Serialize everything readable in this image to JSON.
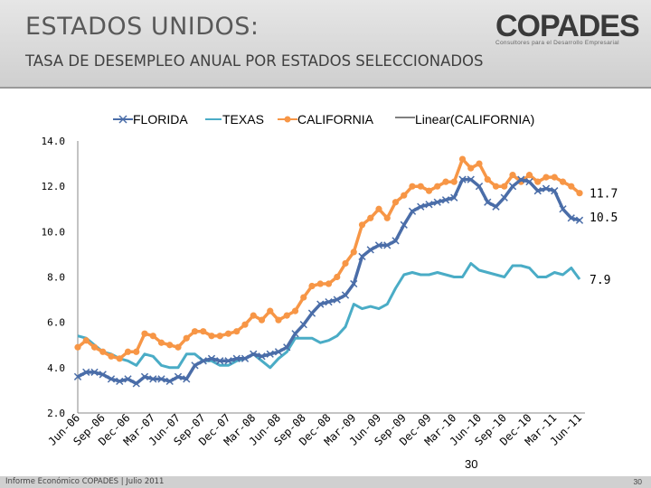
{
  "header": {
    "title": "ESTADOS UNIDOS:",
    "subtitle": "TASA  DE DESEMPLEO ANUAL POR ESTADOS SELECCIONADOS",
    "logo_text": "COPADES",
    "logo_tagline": "Consultores para el Desarrollo Empresarial"
  },
  "page_label": "30",
  "footer": {
    "text": "Informe Económico COPADES  |  Julio 2011",
    "page_number": "30"
  },
  "colors": {
    "florida": "#4a6da8",
    "texas": "#4aacc6",
    "california": "#f79646",
    "trend": "#000000"
  },
  "chart_data": {
    "type": "line",
    "title": "",
    "xlabel": "",
    "ylabel": "",
    "ylim": [
      2.0,
      14.0
    ],
    "yticks": [
      2.0,
      4.0,
      6.0,
      8.0,
      10.0,
      12.0,
      14.0
    ],
    "ytick_labels": [
      "2.0",
      "4.0",
      "6.0",
      "8.0",
      "10.0",
      "12.0",
      "14.0"
    ],
    "x_tick_labels": [
      "Jun-06",
      "Sep-06",
      "Dec-06",
      "Mar-07",
      "Jun-07",
      "Sep-07",
      "Dec-07",
      "Mar-08",
      "Jun-08",
      "Sep-08",
      "Dec-08",
      "Mar-09",
      "Jun-09",
      "Sep-09",
      "Dec-09",
      "Mar-10",
      "Jun-10",
      "Sep-10",
      "Dec-10",
      "Mar-11",
      "Jun-11"
    ],
    "n_points": 61,
    "series": [
      {
        "name": "FLORIDA",
        "marker": "x",
        "values": [
          3.6,
          3.8,
          3.8,
          3.7,
          3.5,
          3.4,
          3.5,
          3.3,
          3.6,
          3.5,
          3.5,
          3.4,
          3.6,
          3.5,
          4.1,
          4.3,
          4.4,
          4.3,
          4.3,
          4.4,
          4.4,
          4.6,
          4.5,
          4.6,
          4.7,
          4.9,
          5.5,
          5.9,
          6.4,
          6.8,
          6.9,
          7.0,
          7.2,
          7.7,
          8.9,
          9.2,
          9.4,
          9.4,
          9.6,
          10.3,
          10.9,
          11.1,
          11.2,
          11.3,
          11.4,
          11.5,
          12.3,
          12.3,
          12.0,
          11.3,
          11.1,
          11.5,
          12.0,
          12.3,
          12.2,
          11.8,
          11.9,
          11.8,
          11.0,
          10.6,
          10.5
        ]
      },
      {
        "name": "TEXAS",
        "marker": "none",
        "values": [
          5.4,
          5.3,
          5.0,
          4.7,
          4.6,
          4.4,
          4.3,
          4.1,
          4.6,
          4.5,
          4.1,
          4.0,
          4.0,
          4.6,
          4.6,
          4.3,
          4.3,
          4.1,
          4.1,
          4.3,
          4.4,
          4.6,
          4.3,
          4.0,
          4.4,
          4.7,
          5.3,
          5.3,
          5.3,
          5.1,
          5.2,
          5.4,
          5.8,
          6.8,
          6.6,
          6.7,
          6.6,
          6.8,
          7.5,
          8.1,
          8.2,
          8.1,
          8.1,
          8.2,
          8.1,
          8.0,
          8.0,
          8.6,
          8.3,
          8.2,
          8.1,
          8.0,
          8.5,
          8.5,
          8.4,
          8.0,
          8.0,
          8.2,
          8.1,
          8.4,
          7.9
        ]
      },
      {
        "name": "CALIFORNIA",
        "marker": "circle",
        "values": [
          4.9,
          5.2,
          4.9,
          4.7,
          4.5,
          4.4,
          4.7,
          4.7,
          5.5,
          5.4,
          5.1,
          5.0,
          4.9,
          5.3,
          5.6,
          5.6,
          5.4,
          5.4,
          5.5,
          5.6,
          5.9,
          6.3,
          6.1,
          6.5,
          6.1,
          6.3,
          6.5,
          7.1,
          7.6,
          7.7,
          7.7,
          8.0,
          8.6,
          9.1,
          10.3,
          10.6,
          11.0,
          10.6,
          11.3,
          11.6,
          12.0,
          12.0,
          11.8,
          12.0,
          12.2,
          12.2,
          13.2,
          12.8,
          13.0,
          12.3,
          12.0,
          12.0,
          12.5,
          12.2,
          12.5,
          12.2,
          12.4,
          12.4,
          12.2,
          12.0,
          11.7
        ]
      },
      {
        "name": "Linear(CALIFORNIA)",
        "marker": "none",
        "trendline_of": "CALIFORNIA"
      }
    ],
    "end_labels": [
      "11.7",
      "10.5",
      "7.9"
    ]
  }
}
